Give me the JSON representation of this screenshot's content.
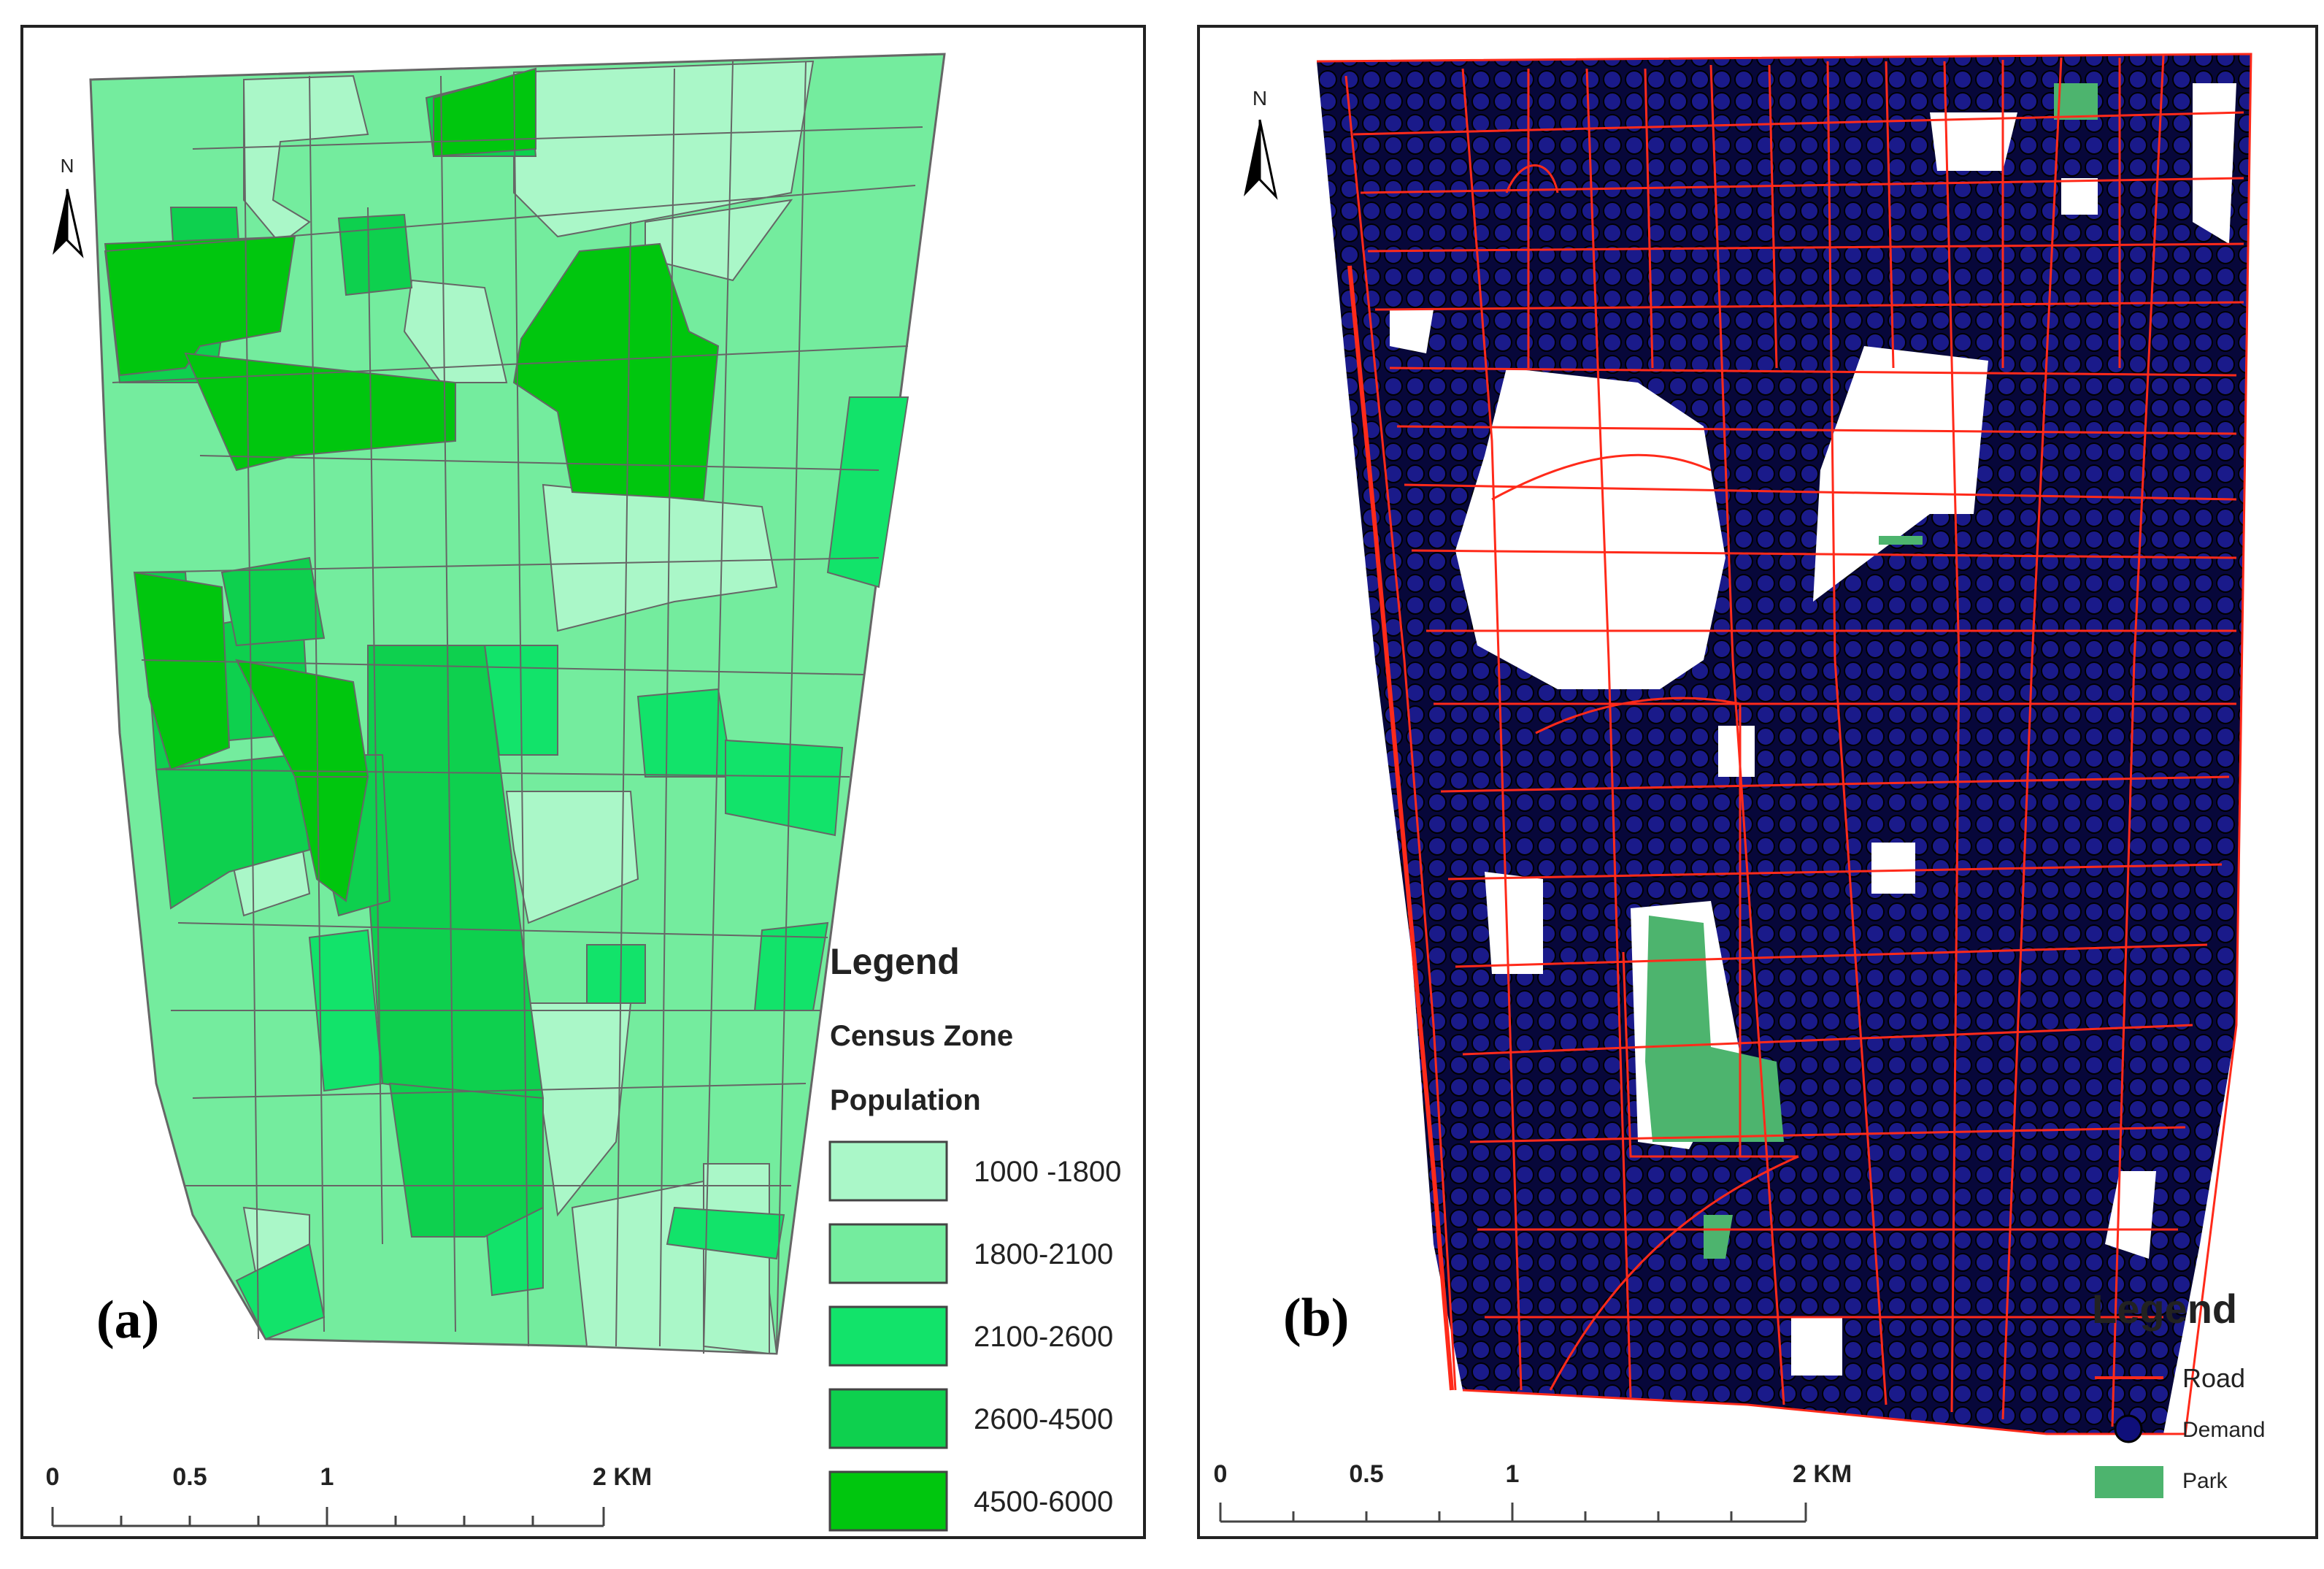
{
  "panel_a": {
    "label": "(a)",
    "north_letter": "N",
    "legend": {
      "title": "Legend",
      "subtitle_1": "Census Zone",
      "subtitle_2": "Population",
      "classes": [
        {
          "label": "1000 -1800",
          "color": "#aaf7c8"
        },
        {
          "label": "1800-2100",
          "color": "#74ec9e"
        },
        {
          "label": "2100-2600",
          "color": "#12e36a"
        },
        {
          "label": "2600-4500",
          "color": "#0ed04e"
        },
        {
          "label": "4500-6000",
          "color": "#00c60e"
        }
      ]
    },
    "scale": [
      "0",
      "0.5",
      "1",
      "2 KM"
    ]
  },
  "panel_b": {
    "label": "(b)",
    "north_letter": "N",
    "legend": {
      "title": "Legend",
      "items": [
        {
          "label": "Road",
          "color": "#ff2a1a"
        },
        {
          "label": "Demand",
          "color": "#0f0f7a"
        },
        {
          "label": "Park",
          "color": "#4db46e"
        }
      ]
    },
    "scale": [
      "0",
      "0.5",
      "1",
      "2 KM"
    ]
  }
}
